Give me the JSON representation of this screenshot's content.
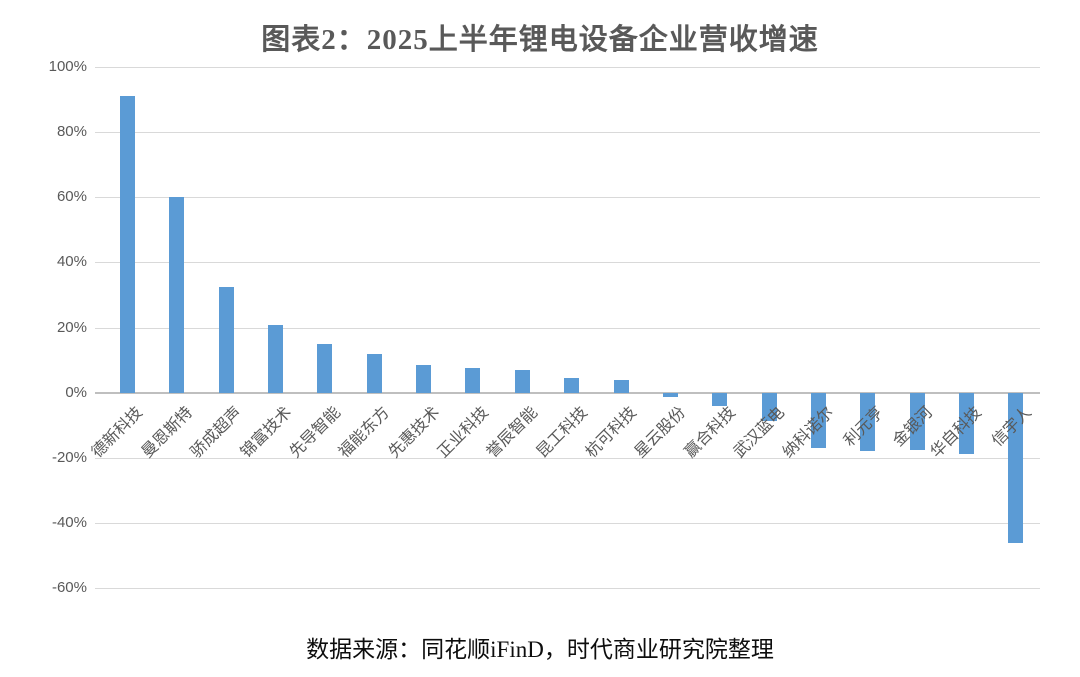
{
  "title": "图表2：2025上半年锂电设备企业营收增速",
  "source": "数据来源：同花顺iFinD，时代商业研究院整理",
  "colors": {
    "bar": "#5B9BD5",
    "title_text": "#595959",
    "axis_text": "#595959",
    "gridline": "#D9D9D9",
    "zero_line": "#BFBFBF",
    "source_text": "#0D0D0D",
    "background": "#FFFFFF"
  },
  "chart_data": {
    "type": "bar",
    "title": "图表2：2025上半年锂电设备企业营收增速",
    "categories": [
      "德新科技",
      "曼恩斯特",
      "骄成超声",
      "锦富技术",
      "先导智能",
      "福能东方",
      "先惠技术",
      "正业科技",
      "誉辰智能",
      "昆工科技",
      "杭可科技",
      "星云股份",
      "赢合科技",
      "武汉蓝电",
      "纳科诺尔",
      "利元亨",
      "金银河",
      "华自科技",
      "信宇人"
    ],
    "values": [
      91,
      60,
      32.3,
      20.7,
      15,
      12,
      8.4,
      7.6,
      6.8,
      4.4,
      3.9,
      -1.2,
      -4.2,
      -8.7,
      -17.0,
      -17.9,
      -17.6,
      -18.9,
      -46.1
    ],
    "unit": "%",
    "xlabel": "",
    "ylabel": "",
    "ylim": [
      -60,
      100
    ],
    "yticks": [
      100,
      80,
      60,
      40,
      20,
      0,
      -20,
      -40,
      -60
    ],
    "ytick_labels": [
      "100%",
      "80%",
      "60%",
      "40%",
      "20%",
      "0%",
      "-20%",
      "-40%",
      "-60%"
    ],
    "grid": "horizontal",
    "legend": "none",
    "source_note": "数据来源：同花顺iFinD，时代商业研究院整理"
  }
}
